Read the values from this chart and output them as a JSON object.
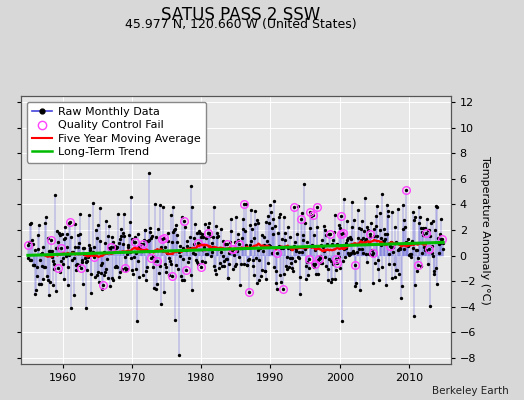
{
  "title": "SATUS PASS 2 SSW",
  "subtitle": "45.977 N, 120.660 W (United States)",
  "ylabel": "Temperature Anomaly (°C)",
  "credit": "Berkeley Earth",
  "xlim": [
    1954,
    2016
  ],
  "ylim": [
    -8.5,
    12.5
  ],
  "yticks": [
    -8,
    -6,
    -4,
    -2,
    0,
    2,
    4,
    6,
    8,
    10,
    12
  ],
  "xticks": [
    1960,
    1970,
    1980,
    1990,
    2000,
    2010
  ],
  "seed": 42,
  "n_years": 60,
  "start_year": 1955,
  "trend_slope": 0.018,
  "bg_color": "#d8d8d8",
  "plot_bg_color": "#e8e8e8",
  "raw_line_color": "#4444dd",
  "raw_dot_color": "#000000",
  "qc_fail_color": "#ff44ff",
  "moving_avg_color": "#ff0000",
  "trend_color": "#00bb00",
  "title_fontsize": 12,
  "subtitle_fontsize": 9,
  "axis_fontsize": 8,
  "tick_fontsize": 8,
  "legend_fontsize": 8
}
